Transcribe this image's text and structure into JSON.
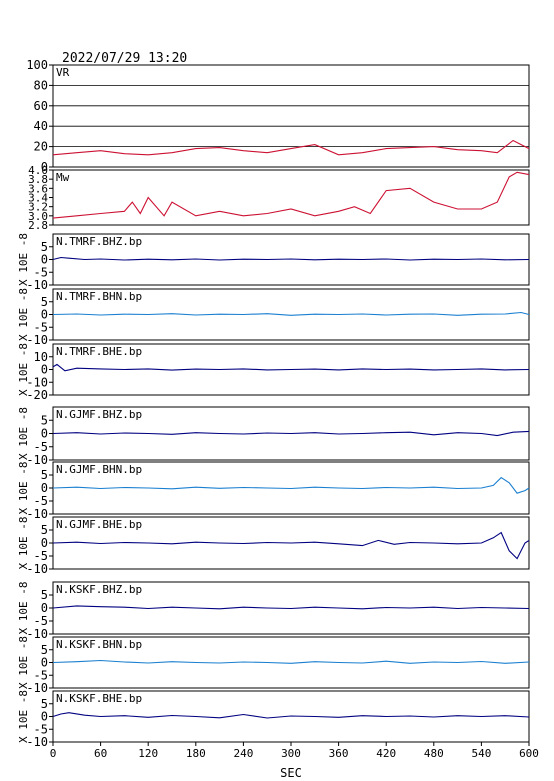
{
  "figure": {
    "title": "2022/07/29  13:20",
    "xlabel": "SEC",
    "ylabel_unit": "X 10E -8",
    "x_ticks": [
      0,
      60,
      120,
      180,
      240,
      300,
      360,
      420,
      480,
      540,
      600
    ]
  },
  "chart_data": [
    {
      "type": "line",
      "label": "VR",
      "xlim": [
        0,
        600
      ],
      "ylim": [
        0,
        100
      ],
      "yticks": [
        "0",
        "20",
        "40",
        "60",
        "80",
        "100"
      ],
      "grid": true,
      "color": "#cc1133",
      "x": [
        0,
        30,
        60,
        90,
        120,
        150,
        180,
        210,
        240,
        270,
        300,
        330,
        360,
        390,
        420,
        450,
        480,
        510,
        540,
        560,
        580,
        590,
        600
      ],
      "values": [
        12,
        14,
        16,
        13,
        12,
        14,
        18,
        19,
        16,
        14,
        18,
        22,
        12,
        14,
        18,
        19,
        20,
        17,
        16,
        14,
        26,
        22,
        18
      ]
    },
    {
      "type": "line",
      "label": "Mw",
      "xlim": [
        0,
        600
      ],
      "ylim": [
        2.8,
        4.0
      ],
      "yticks": [
        "2.8",
        "3.0",
        "3.2",
        "3.4",
        "3.6",
        "3.8",
        "4.0"
      ],
      "grid": false,
      "color": "#cc1133",
      "x": [
        0,
        30,
        60,
        90,
        100,
        110,
        120,
        140,
        150,
        180,
        210,
        240,
        270,
        300,
        330,
        360,
        380,
        400,
        420,
        450,
        480,
        510,
        540,
        560,
        575,
        585,
        600
      ],
      "values": [
        2.95,
        3.0,
        3.05,
        3.1,
        3.3,
        3.05,
        3.4,
        3.0,
        3.3,
        3.0,
        3.1,
        3.0,
        3.05,
        3.15,
        3.0,
        3.1,
        3.2,
        3.05,
        3.55,
        3.6,
        3.3,
        3.15,
        3.15,
        3.3,
        3.85,
        3.95,
        3.9
      ]
    },
    {
      "type": "line",
      "label": "N.TMRF.BHZ.bp",
      "xlim": [
        0,
        600
      ],
      "ylim": [
        -10,
        10
      ],
      "yticks": [
        "-10",
        "-5",
        "0",
        "5"
      ],
      "grid": false,
      "color": "#000080",
      "x": [
        0,
        10,
        20,
        40,
        60,
        90,
        120,
        150,
        180,
        210,
        240,
        270,
        300,
        330,
        360,
        390,
        420,
        450,
        480,
        510,
        540,
        570,
        600
      ],
      "values": [
        0,
        0.8,
        0.5,
        0,
        0.2,
        -0.2,
        0.1,
        -0.1,
        0.2,
        -0.2,
        0.1,
        0,
        0.2,
        -0.1,
        0.1,
        0,
        0.2,
        -0.2,
        0.1,
        0,
        0.2,
        -0.1,
        0
      ]
    },
    {
      "type": "line",
      "label": "N.TMRF.BHN.bp",
      "xlim": [
        0,
        600
      ],
      "ylim": [
        -10,
        10
      ],
      "yticks": [
        "-10",
        "-5",
        "0",
        "5"
      ],
      "grid": false,
      "color": "#1a7fd0",
      "x": [
        0,
        30,
        60,
        90,
        120,
        150,
        180,
        210,
        240,
        270,
        300,
        330,
        360,
        390,
        420,
        450,
        480,
        510,
        540,
        570,
        590,
        600
      ],
      "values": [
        0,
        0.2,
        -0.2,
        0.1,
        0,
        0.3,
        -0.2,
        0.1,
        0,
        0.3,
        -0.3,
        0.1,
        0,
        0.2,
        -0.2,
        0.1,
        0.2,
        -0.3,
        0.1,
        0.2,
        0.8,
        0
      ]
    },
    {
      "type": "line",
      "label": "N.TMRF.BHE.bp",
      "xlim": [
        0,
        600
      ],
      "ylim": [
        -20,
        20
      ],
      "yticks": [
        "-20",
        "-10",
        "0",
        "10"
      ],
      "grid": false,
      "color": "#000080",
      "x": [
        0,
        5,
        15,
        30,
        60,
        90,
        120,
        150,
        180,
        210,
        240,
        270,
        300,
        330,
        360,
        390,
        420,
        450,
        480,
        510,
        540,
        570,
        600
      ],
      "values": [
        2,
        4,
        -1,
        1,
        0.5,
        0,
        0.5,
        -0.5,
        0.3,
        0,
        0.5,
        -0.3,
        0,
        0.3,
        -0.3,
        0.5,
        0,
        0.3,
        -0.3,
        0,
        0.5,
        -0.3,
        0
      ]
    },
    {
      "type": "line",
      "label": "N.GJMF.BHZ.bp",
      "xlim": [
        0,
        600
      ],
      "ylim": [
        -10,
        10
      ],
      "yticks": [
        "-10",
        "-5",
        "0",
        "5"
      ],
      "grid": false,
      "color": "#000080",
      "x": [
        0,
        30,
        60,
        90,
        120,
        150,
        180,
        210,
        240,
        270,
        300,
        330,
        360,
        390,
        420,
        450,
        480,
        510,
        540,
        560,
        580,
        600
      ],
      "values": [
        0,
        0.3,
        -0.2,
        0.2,
        0,
        -0.3,
        0.3,
        0,
        -0.2,
        0.2,
        0,
        0.3,
        -0.2,
        0,
        0.3,
        0.5,
        -0.5,
        0.3,
        0,
        -0.8,
        0.5,
        0.8
      ]
    },
    {
      "type": "line",
      "label": "N.GJMF.BHN.bp",
      "xlim": [
        0,
        600
      ],
      "ylim": [
        -10,
        10
      ],
      "yticks": [
        "-10",
        "-5",
        "0",
        "5"
      ],
      "grid": false,
      "color": "#1a7fd0",
      "x": [
        0,
        30,
        60,
        90,
        120,
        150,
        180,
        210,
        240,
        270,
        300,
        330,
        360,
        390,
        420,
        450,
        480,
        510,
        540,
        555,
        565,
        575,
        585,
        595,
        600
      ],
      "values": [
        0,
        0.3,
        -0.2,
        0.2,
        0,
        -0.3,
        0.3,
        -0.1,
        0.2,
        0,
        -0.2,
        0.3,
        0,
        -0.2,
        0.2,
        0,
        0.3,
        -0.2,
        0,
        1,
        4,
        2,
        -2,
        -1,
        0
      ]
    },
    {
      "type": "line",
      "label": "N.GJMF.BHE.bp",
      "xlim": [
        0,
        600
      ],
      "ylim": [
        -10,
        10
      ],
      "yticks": [
        "-10",
        "-5",
        "0",
        "5"
      ],
      "grid": false,
      "color": "#000080",
      "x": [
        0,
        30,
        60,
        90,
        120,
        150,
        180,
        210,
        240,
        270,
        300,
        330,
        360,
        390,
        410,
        430,
        450,
        480,
        510,
        540,
        555,
        565,
        575,
        585,
        595,
        600
      ],
      "values": [
        0,
        0.3,
        -0.2,
        0.2,
        0,
        -0.3,
        0.3,
        0,
        -0.2,
        0.2,
        0,
        0.3,
        -0.3,
        -1,
        1,
        -0.5,
        0.2,
        0,
        -0.3,
        0,
        2,
        4,
        -3,
        -6,
        0,
        1
      ]
    },
    {
      "type": "line",
      "label": "N.KSKF.BHZ.bp",
      "xlim": [
        0,
        600
      ],
      "ylim": [
        -10,
        10
      ],
      "yticks": [
        "-10",
        "-5",
        "0",
        "5"
      ],
      "grid": false,
      "color": "#000080",
      "x": [
        0,
        30,
        60,
        90,
        120,
        150,
        180,
        210,
        240,
        270,
        300,
        330,
        360,
        390,
        420,
        450,
        480,
        510,
        540,
        570,
        600
      ],
      "values": [
        0,
        0.8,
        0.5,
        0.3,
        -0.2,
        0.3,
        0,
        -0.3,
        0.3,
        0,
        -0.2,
        0.3,
        0,
        -0.3,
        0.2,
        0,
        0.3,
        -0.2,
        0.2,
        0,
        -0.2
      ]
    },
    {
      "type": "line",
      "label": "N.KSKF.BHN.bp",
      "xlim": [
        0,
        600
      ],
      "ylim": [
        -10,
        10
      ],
      "yticks": [
        "-10",
        "-5",
        "0",
        "5"
      ],
      "grid": false,
      "color": "#1a7fd0",
      "x": [
        0,
        30,
        60,
        90,
        120,
        150,
        180,
        210,
        240,
        270,
        300,
        330,
        360,
        390,
        420,
        450,
        480,
        510,
        540,
        570,
        600
      ],
      "values": [
        0,
        0.3,
        0.8,
        0.2,
        -0.2,
        0.3,
        0,
        -0.2,
        0.2,
        0,
        -0.3,
        0.3,
        0,
        -0.2,
        0.5,
        -0.3,
        0.2,
        0,
        0.4,
        -0.3,
        0.2
      ]
    },
    {
      "type": "line",
      "label": "N.KSKF.BHE.bp",
      "xlim": [
        0,
        600
      ],
      "ylim": [
        -10,
        10
      ],
      "yticks": [
        "-10",
        "-5",
        "0",
        "5"
      ],
      "grid": false,
      "color": "#000080",
      "x": [
        0,
        10,
        20,
        40,
        60,
        90,
        120,
        150,
        180,
        210,
        240,
        270,
        300,
        330,
        360,
        390,
        420,
        450,
        480,
        510,
        540,
        570,
        600
      ],
      "values": [
        0,
        1,
        1.5,
        0.5,
        0,
        0.3,
        -0.3,
        0.4,
        0,
        -0.5,
        0.8,
        -0.6,
        0.2,
        0,
        -0.3,
        0.3,
        0,
        0.2,
        -0.2,
        0.3,
        0,
        0.3,
        -0.2
      ]
    }
  ]
}
